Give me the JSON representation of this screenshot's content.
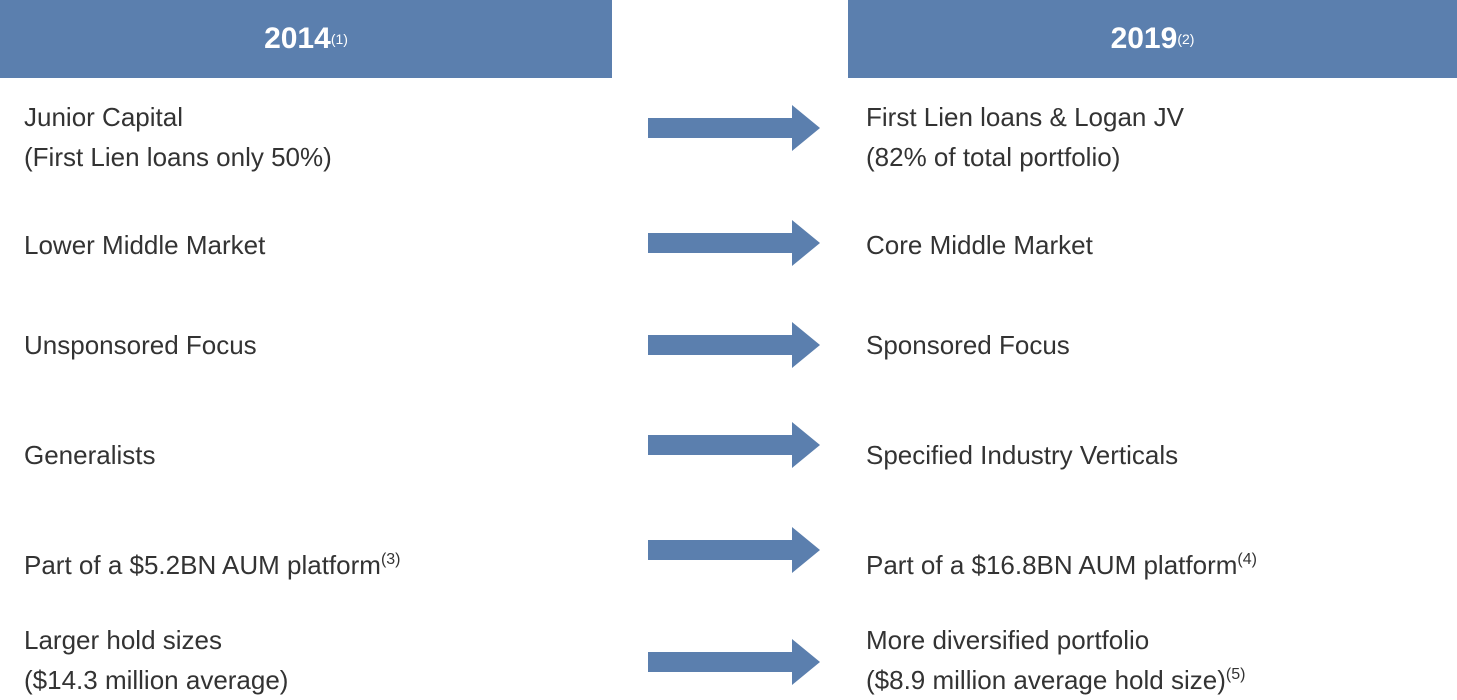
{
  "header": {
    "left": {
      "title": "2014",
      "note": "(1)"
    },
    "right": {
      "title": "2019",
      "note": "(2)"
    }
  },
  "rows": [
    {
      "left": {
        "lines": [
          "Junior Capital",
          "(First Lien loans only 50%)"
        ]
      },
      "right": {
        "lines": [
          "First Lien loans & Logan JV",
          "(82% of total portfolio)"
        ]
      }
    },
    {
      "left": {
        "lines": [
          "Lower Middle Market"
        ]
      },
      "right": {
        "lines": [
          "Core Middle Market"
        ]
      }
    },
    {
      "left": {
        "lines": [
          "Unsponsored Focus"
        ]
      },
      "right": {
        "lines": [
          "Sponsored Focus"
        ]
      }
    },
    {
      "left": {
        "lines": [
          "Generalists"
        ]
      },
      "right": {
        "lines": [
          "Specified Industry Verticals"
        ]
      }
    },
    {
      "left": {
        "lines": [
          "Part of a $5.2BN AUM platform"
        ],
        "note": "(3)"
      },
      "right": {
        "lines": [
          "Part of a $16.8BN AUM platform"
        ],
        "note": "(4)"
      }
    },
    {
      "left": {
        "lines": [
          "Larger hold sizes",
          "($14.3 million average)"
        ]
      },
      "right": {
        "lines": [
          "More diversified portfolio",
          "($8.9 million average hold size)"
        ],
        "note": "(5)"
      }
    }
  ]
}
